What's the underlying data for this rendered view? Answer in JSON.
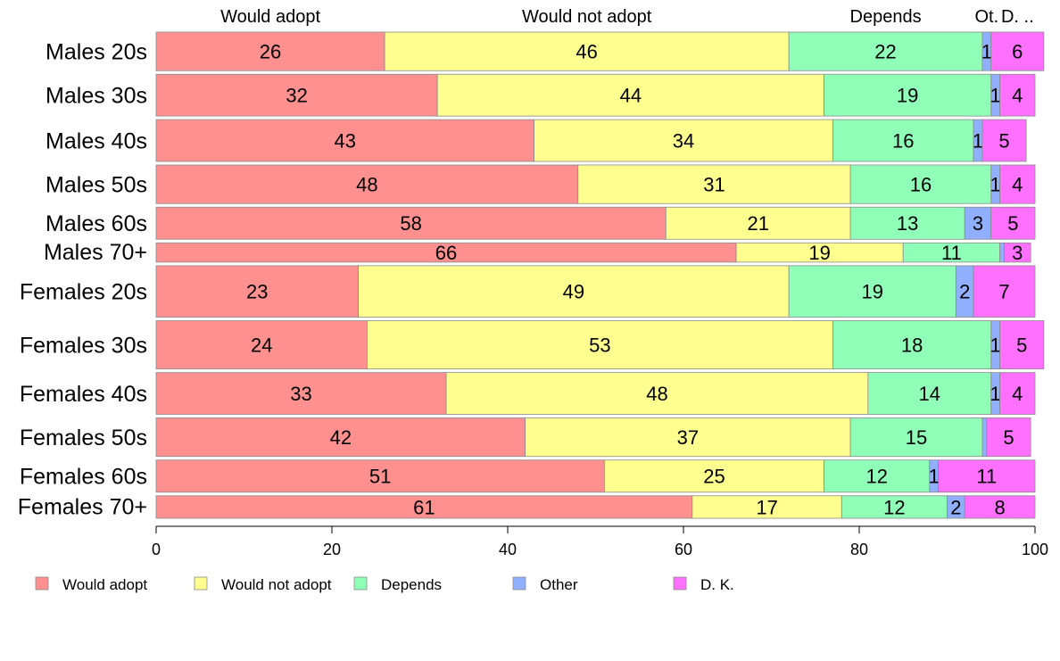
{
  "chart_data": {
    "type": "bar",
    "orientation": "horizontal",
    "stacked": true,
    "percent_scale": true,
    "categories": [
      "Males 20s",
      "Males 30s",
      "Males 40s",
      "Males 50s",
      "Males 60s",
      "Males 70+",
      "Females 20s",
      "Females 30s",
      "Females 40s",
      "Females 50s",
      "Females 60s",
      "Females 70+"
    ],
    "bar_widths": [
      12,
      13,
      13,
      12,
      10,
      6,
      16,
      15,
      13,
      12,
      10,
      7
    ],
    "series": [
      {
        "name": "Would adopt",
        "color": "#FF9090",
        "values": [
          26,
          32,
          43,
          48,
          58,
          66,
          23,
          24,
          33,
          42,
          51,
          61
        ]
      },
      {
        "name": "Would not adopt",
        "color": "#FFFF90",
        "values": [
          46,
          44,
          34,
          31,
          21,
          19,
          49,
          53,
          48,
          37,
          25,
          17
        ]
      },
      {
        "name": "Depends",
        "color": "#90FFB8",
        "values": [
          22,
          19,
          16,
          16,
          13,
          11,
          19,
          18,
          14,
          15,
          12,
          12
        ]
      },
      {
        "name": "Other",
        "color": "#90B0FF",
        "values": [
          1,
          1,
          1,
          1,
          3,
          0.5,
          2,
          1,
          1,
          0.5,
          1,
          2
        ]
      },
      {
        "name": "D. K.",
        "color": "#FF70FF",
        "values": [
          6,
          4,
          5,
          4,
          5,
          3,
          7,
          5,
          4,
          5,
          11,
          8
        ]
      }
    ],
    "top_labels": [
      "Would adopt",
      "Would not adopt",
      "Depends",
      "Ot.",
      "D. .."
    ],
    "data_labels": [
      [
        "26",
        "46",
        "22",
        "1",
        "6"
      ],
      [
        "32",
        "44",
        "19",
        "1",
        "4"
      ],
      [
        "43",
        "34",
        "16",
        "1",
        "5"
      ],
      [
        "48",
        "31",
        "16",
        "1",
        "4"
      ],
      [
        "58",
        "21",
        "13",
        "3",
        "5"
      ],
      [
        "66",
        "19",
        "11",
        "",
        "3"
      ],
      [
        "23",
        "49",
        "19",
        "2",
        "7"
      ],
      [
        "24",
        "53",
        "18",
        "1",
        "5"
      ],
      [
        "33",
        "48",
        "14",
        "1",
        "4"
      ],
      [
        "42",
        "37",
        "15",
        "",
        "5"
      ],
      [
        "51",
        "25",
        "12",
        "1",
        "11"
      ],
      [
        "61",
        "17",
        "12",
        "2",
        "8"
      ]
    ],
    "xlim": [
      0,
      100
    ],
    "xticks": [
      "0",
      "20",
      "40",
      "60",
      "80",
      "100"
    ],
    "xlabel": "",
    "ylabel": "",
    "grid": false,
    "legend": {
      "position": "bottom-left",
      "entries": [
        "Would adopt",
        "Would not adopt",
        "Depends",
        "Other",
        "D. K."
      ]
    }
  }
}
